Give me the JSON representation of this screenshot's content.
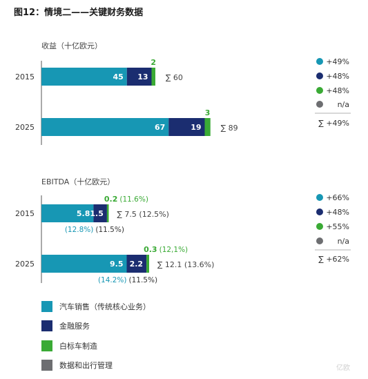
{
  "title": "图12：情境二——关键财务数据",
  "colors": {
    "teal": "#1797b4",
    "navy": "#1b2d70",
    "green": "#3aaa35",
    "gray": "#6d6e71"
  },
  "categories_legend": [
    {
      "label": "汽车销售（传统核心业务）",
      "color": "#1797b4"
    },
    {
      "label": "金融服务",
      "color": "#1b2d70"
    },
    {
      "label": "白标车制造",
      "color": "#3aaa35"
    },
    {
      "label": "数据和出行管理",
      "color": "#6d6e71"
    }
  ],
  "watermark": "亿欧",
  "chart_data": [
    {
      "type": "bar",
      "orientation": "horizontal-stacked",
      "title": "收益（十亿欧元）",
      "categories": [
        "2015",
        "2025"
      ],
      "series": [
        {
          "name": "汽车销售（传统核心业务）",
          "values": [
            45,
            67
          ],
          "labels": [
            "45",
            "67"
          ]
        },
        {
          "name": "金融服务",
          "values": [
            13,
            19
          ],
          "labels": [
            "13",
            "19"
          ]
        },
        {
          "name": "白标车制造",
          "values": [
            2,
            3
          ],
          "labels": [
            "2",
            "3"
          ]
        },
        {
          "name": "数据和出行管理",
          "values": [
            0,
            0
          ]
        }
      ],
      "totals": [
        "∑ 60",
        "∑ 89"
      ],
      "growth_legend": [
        "+49%",
        "+48%",
        "+48%",
        "n/a"
      ],
      "total_growth": "∑ +49%"
    },
    {
      "type": "bar",
      "orientation": "horizontal-stacked",
      "title": "EBITDA（十亿欧元）",
      "categories": [
        "2015",
        "2025"
      ],
      "series": [
        {
          "name": "汽车销售（传统核心业务）",
          "values": [
            5.8,
            9.5
          ],
          "labels": [
            "5.8",
            "9.5"
          ],
          "margins": [
            "(12.8%)",
            "(14.2%)"
          ]
        },
        {
          "name": "金融服务",
          "values": [
            1.5,
            2.2
          ],
          "labels": [
            "1.5",
            "2.2"
          ],
          "margins": [
            "(11.5%)",
            "(11.5%)"
          ]
        },
        {
          "name": "白标车制造",
          "values": [
            0.2,
            0.3
          ],
          "labels": [
            "0.2",
            "0.3"
          ],
          "margins": [
            "(11.6%)",
            "(12,1%)"
          ]
        },
        {
          "name": "数据和出行管理",
          "values": [
            0,
            0
          ]
        }
      ],
      "totals": [
        "∑ 7.5 (12.5%)",
        "∑ 12.1 (13.6%)"
      ],
      "growth_legend": [
        "+66%",
        "+48%",
        "+55%",
        "n/a"
      ],
      "total_growth": "∑ +62%"
    }
  ]
}
